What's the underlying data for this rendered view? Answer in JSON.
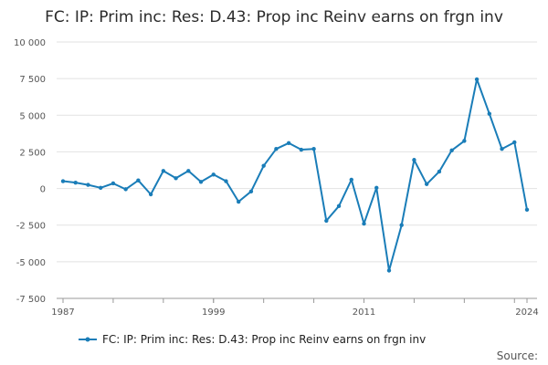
{
  "title": "FC: IP: Prim inc: Res: D.43: Prop inc Reinv earns on frgn inv",
  "source_label": "Source:",
  "colors": {
    "series": "#1a7db8",
    "grid": "#e2e2e2",
    "axis": "#999999"
  },
  "chart_data": {
    "type": "line",
    "title": "FC: IP: Prim inc: Res: D.43: Prop inc Reinv earns on frgn inv",
    "xlabel": "",
    "ylabel": "",
    "xlim": [
      1987,
      2024
    ],
    "ylim": [
      -7500,
      10000
    ],
    "y_ticks": [
      10000,
      7500,
      5000,
      2500,
      0,
      -2500,
      -5000,
      -7500
    ],
    "y_tick_labels": [
      "10 000",
      "7 500",
      "5 000",
      "2 500",
      "0",
      "-2 500",
      "-5 000",
      "-7 500"
    ],
    "x_tick_labels": [
      "1987",
      "1999",
      "2011",
      "2024"
    ],
    "x_tick_values": [
      1987,
      1999,
      2011,
      2024
    ],
    "grid": true,
    "legend_position": "bottom",
    "series": [
      {
        "name": "FC: IP: Prim inc: Res: D.43: Prop inc Reinv earns on frgn inv",
        "x": [
          1987,
          1988,
          1989,
          1990,
          1991,
          1992,
          1993,
          1994,
          1995,
          1996,
          1997,
          1998,
          1999,
          2000,
          2001,
          2002,
          2003,
          2004,
          2005,
          2006,
          2007,
          2008,
          2009,
          2010,
          2011,
          2012,
          2013,
          2014,
          2015,
          2016,
          2017,
          2018,
          2019,
          2020,
          2021,
          2022,
          2023,
          2024
        ],
        "values": [
          500,
          400,
          250,
          50,
          350,
          -50,
          550,
          -400,
          1200,
          700,
          1200,
          450,
          950,
          500,
          -900,
          -200,
          1550,
          2700,
          3100,
          2650,
          2700,
          -2200,
          -1200,
          600,
          -2400,
          50,
          -5600,
          -2500,
          1950,
          300,
          1150,
          2600,
          3250,
          7450,
          5100,
          2700,
          3150,
          -1450
        ]
      }
    ]
  }
}
